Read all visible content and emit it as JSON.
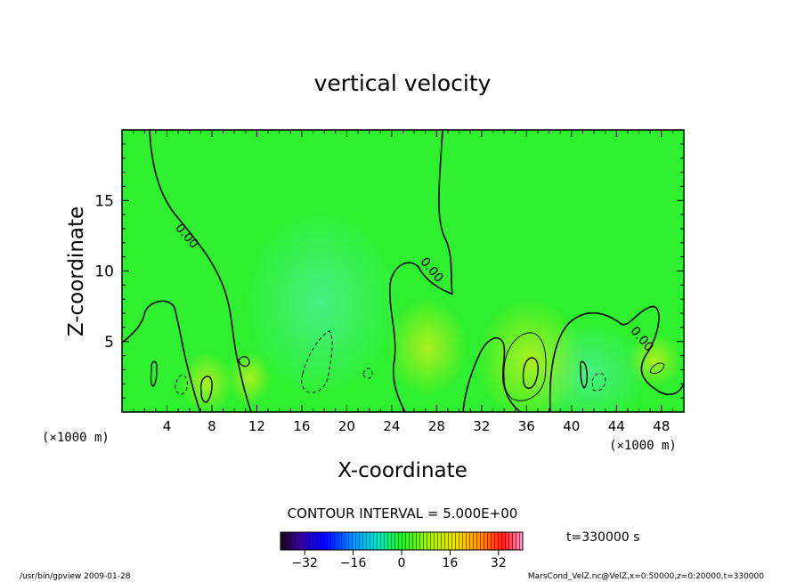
{
  "chart_data": {
    "type": "heatmap",
    "title": "vertical velocity",
    "xlabel": "X-coordinate",
    "ylabel": "Z-coordinate",
    "x_unit_left": "(×1000 m)",
    "x_unit_right": "(×1000 m)",
    "xlim": [
      0,
      50
    ],
    "ylim": [
      0,
      20
    ],
    "x_ticks": [
      "4",
      "8",
      "12",
      "16",
      "20",
      "24",
      "28",
      "32",
      "36",
      "40",
      "44",
      "48"
    ],
    "x_tick_values": [
      4,
      8,
      12,
      16,
      20,
      24,
      28,
      32,
      36,
      40,
      44,
      48
    ],
    "y_ticks": [
      "5",
      "10",
      "15"
    ],
    "y_tick_values": [
      5,
      10,
      15
    ],
    "contour_labels": [
      {
        "text": "0.00",
        "x": 5.5,
        "z": 12.3
      },
      {
        "text": "0.00",
        "x": 27.3,
        "z": 9.9
      },
      {
        "text": "0.00",
        "x": 46.0,
        "z": 5.0
      }
    ],
    "contour_interval_text": "CONTOUR INTERVAL = 5.000E+00",
    "colorbar": {
      "min": -40,
      "max": 40,
      "ticks": [
        "-32",
        "-16",
        "0",
        "16",
        "32"
      ],
      "tick_values": [
        -32,
        -16,
        0,
        16,
        32
      ]
    },
    "time_label": "t=330000 s",
    "background_color": "#2ef02e",
    "grid": false
  },
  "footer": {
    "left": "/usr/bin/gpview   2009-01-28",
    "right": "MarsCond_VelZ.nc@VelZ,x=0:50000,z=0:20000,t=330000"
  }
}
